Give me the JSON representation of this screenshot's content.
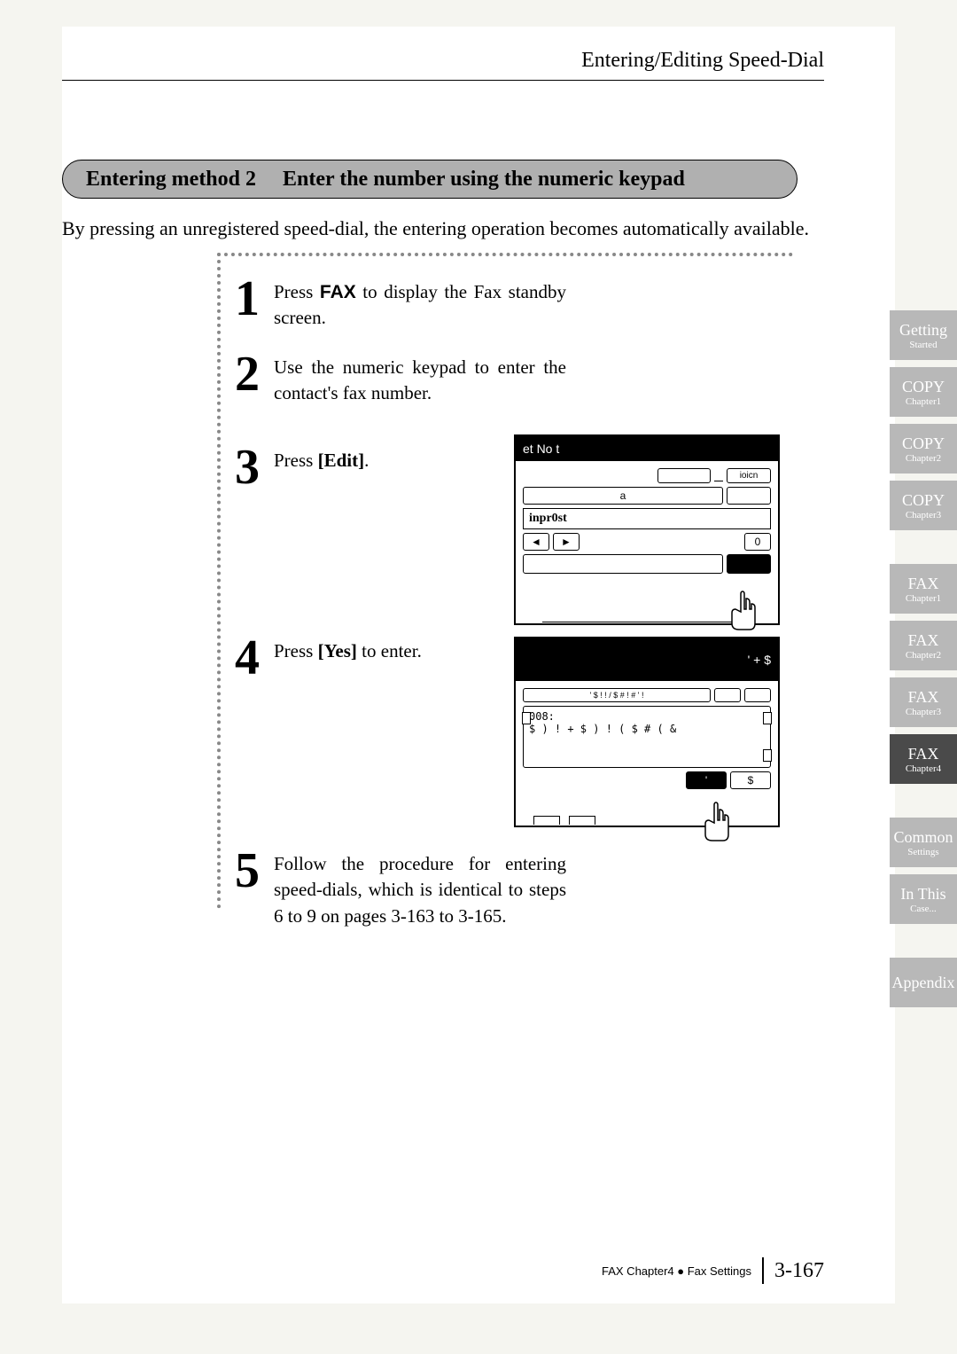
{
  "header": {
    "section_title": "Entering/Editing Speed-Dial"
  },
  "banner": {
    "lead": "Entering method 2",
    "rest": "Enter the number using the numeric keypad"
  },
  "intro": "By pressing an unregistered speed-dial, the entering operation becomes automatically available.",
  "steps": {
    "s1": {
      "num": "1",
      "text_a": "Press ",
      "key": "FAX",
      "text_b": " to display the Fax standby screen."
    },
    "s2": {
      "num": "2",
      "text": "Use the numeric keypad to enter the contact's fax number."
    },
    "s3": {
      "num": "3",
      "text_a": "Press ",
      "key": "[Edit]",
      "text_b": "."
    },
    "s4": {
      "num": "4",
      "text_a": "Press ",
      "key": "[Yes]",
      "text_b": " to enter."
    },
    "s5": {
      "num": "5",
      "text": "Follow the procedure for entering speed-dials, which is identical to steps 6 to 9 on pages 3-163 to 3-165."
    }
  },
  "lcd1": {
    "title_left": "et   No   t",
    "title_right": "",
    "row1_btn1": "",
    "row1_btn2": "ioicn",
    "row2_label": "a",
    "display": "inpr0st",
    "arrow_left": "◄",
    "arrow_right": "►",
    "zero": "0"
  },
  "lcd2": {
    "title_left": "",
    "title_right": "'    +   $",
    "garble": "' $ ! ! /    $ # !     #    ' !",
    "line1": "008:",
    "line2": "$ ) !   + $ )  !     ( $   # (  &",
    "bottom_btn1": "'",
    "bottom_btn2": "$"
  },
  "tabs": [
    {
      "main": "Getting",
      "sub": "Started",
      "active": false
    },
    {
      "main": "COPY",
      "sub": "Chapter1",
      "active": false
    },
    {
      "main": "COPY",
      "sub": "Chapter2",
      "active": false
    },
    {
      "main": "COPY",
      "sub": "Chapter3",
      "active": false
    },
    {
      "main": "FAX",
      "sub": "Chapter1",
      "active": false
    },
    {
      "main": "FAX",
      "sub": "Chapter2",
      "active": false
    },
    {
      "main": "FAX",
      "sub": "Chapter3",
      "active": false
    },
    {
      "main": "FAX",
      "sub": "Chapter4",
      "active": true
    },
    {
      "main": "Common",
      "sub": "Settings",
      "active": false
    },
    {
      "main": "In This",
      "sub": "Case...",
      "active": false
    },
    {
      "main": "Appendix",
      "sub": "",
      "active": false
    }
  ],
  "footer": {
    "breadcrumb": "FAX Chapter4 ● Fax Settings",
    "page": "3-167"
  }
}
